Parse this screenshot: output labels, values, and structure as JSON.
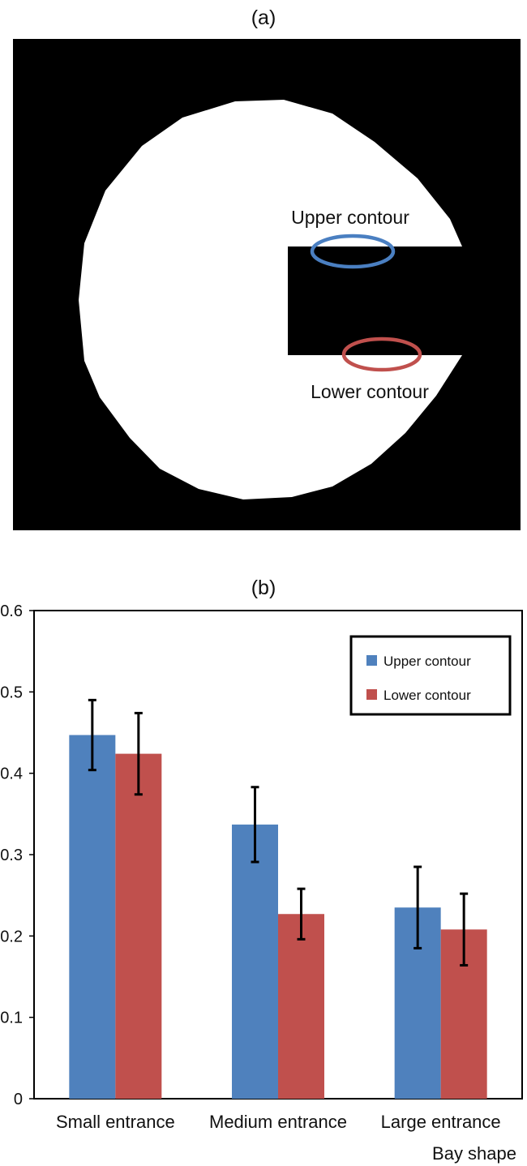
{
  "panel_a": {
    "label": "(a)",
    "upper_label": "Upper contour",
    "lower_label": "Lower contour",
    "colors": {
      "upper": "#4a7fc1",
      "lower": "#c0504d",
      "background": "#000000",
      "shape": "#ffffff"
    }
  },
  "panel_b": {
    "label": "(b)"
  },
  "chart_data": {
    "type": "bar",
    "categories": [
      "Small entrance",
      "Medium entrance",
      "Large entrance"
    ],
    "series": [
      {
        "name": "Upper contour",
        "color": "#4f81bd",
        "values": [
          0.447,
          0.337,
          0.235
        ],
        "errors": [
          0.043,
          0.046,
          0.05
        ]
      },
      {
        "name": "Lower contour",
        "color": "#c0504d",
        "values": [
          0.424,
          0.227,
          0.208
        ],
        "errors": [
          0.05,
          0.031,
          0.044
        ]
      }
    ],
    "xlabel": "Bay shape",
    "ylabel": "",
    "ylim": [
      0,
      0.6
    ],
    "yticks": [
      "0",
      "0.1",
      "0.2",
      "0.3",
      "0.4",
      "0.5",
      "0.6"
    ],
    "grid": false,
    "legend_position": "top-right"
  }
}
